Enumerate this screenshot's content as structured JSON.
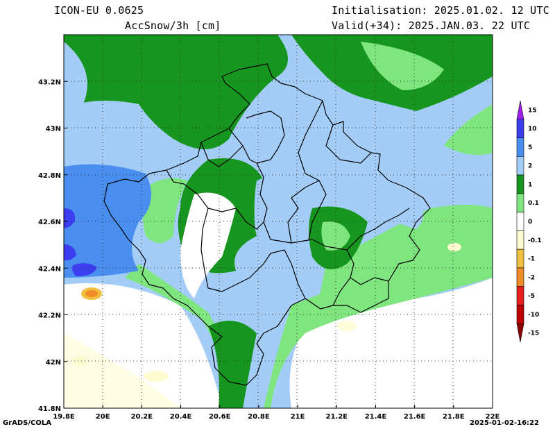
{
  "header": {
    "model": "ICON-EU 0.0625",
    "variable": "AccSnow/3h [cm]",
    "init": "Initialisation: 2025.01.02. 12 UTC",
    "valid": "Valid(+34): 2025.JAN.03. 22 UTC"
  },
  "map": {
    "lon_labels": [
      "19.8E",
      "20E",
      "20.2E",
      "20.4E",
      "20.6E",
      "20.8E",
      "21E",
      "21.2E",
      "21.4E",
      "21.6E",
      "21.8E",
      "22E"
    ],
    "lat_labels": [
      "43.2N",
      "43N",
      "42.8N",
      "42.6N",
      "42.4N",
      "42.2N",
      "42N",
      "41.8N"
    ],
    "lon_range": [
      19.8,
      22.0
    ],
    "lat_range": [
      41.8,
      43.4
    ],
    "grid": "dotted"
  },
  "legend": {
    "classes": [
      {
        "label": "15",
        "color": "#a020f0"
      },
      {
        "label": "10",
        "color": "#3c3cf0"
      },
      {
        "label": "5",
        "color": "#4a8ff0"
      },
      {
        "label": "2",
        "color": "#a3cdf7"
      },
      {
        "label": "1",
        "color": "#16961e"
      },
      {
        "label": "0.1",
        "color": "#7fe67f"
      },
      {
        "label": "0",
        "color": "#ffffff"
      },
      {
        "label": "-0.1",
        "color": "#fffbd0"
      },
      {
        "label": "-1",
        "color": "#f0c040"
      },
      {
        "label": "-2",
        "color": "#f08c28"
      },
      {
        "label": "-5",
        "color": "#e81e1e"
      },
      {
        "label": "-10",
        "color": "#c00000"
      },
      {
        "label": "-15",
        "color": "#8c0000"
      }
    ]
  },
  "footer": {
    "left": "GrADS/COLA",
    "right": "2025-01-02-16:22"
  }
}
